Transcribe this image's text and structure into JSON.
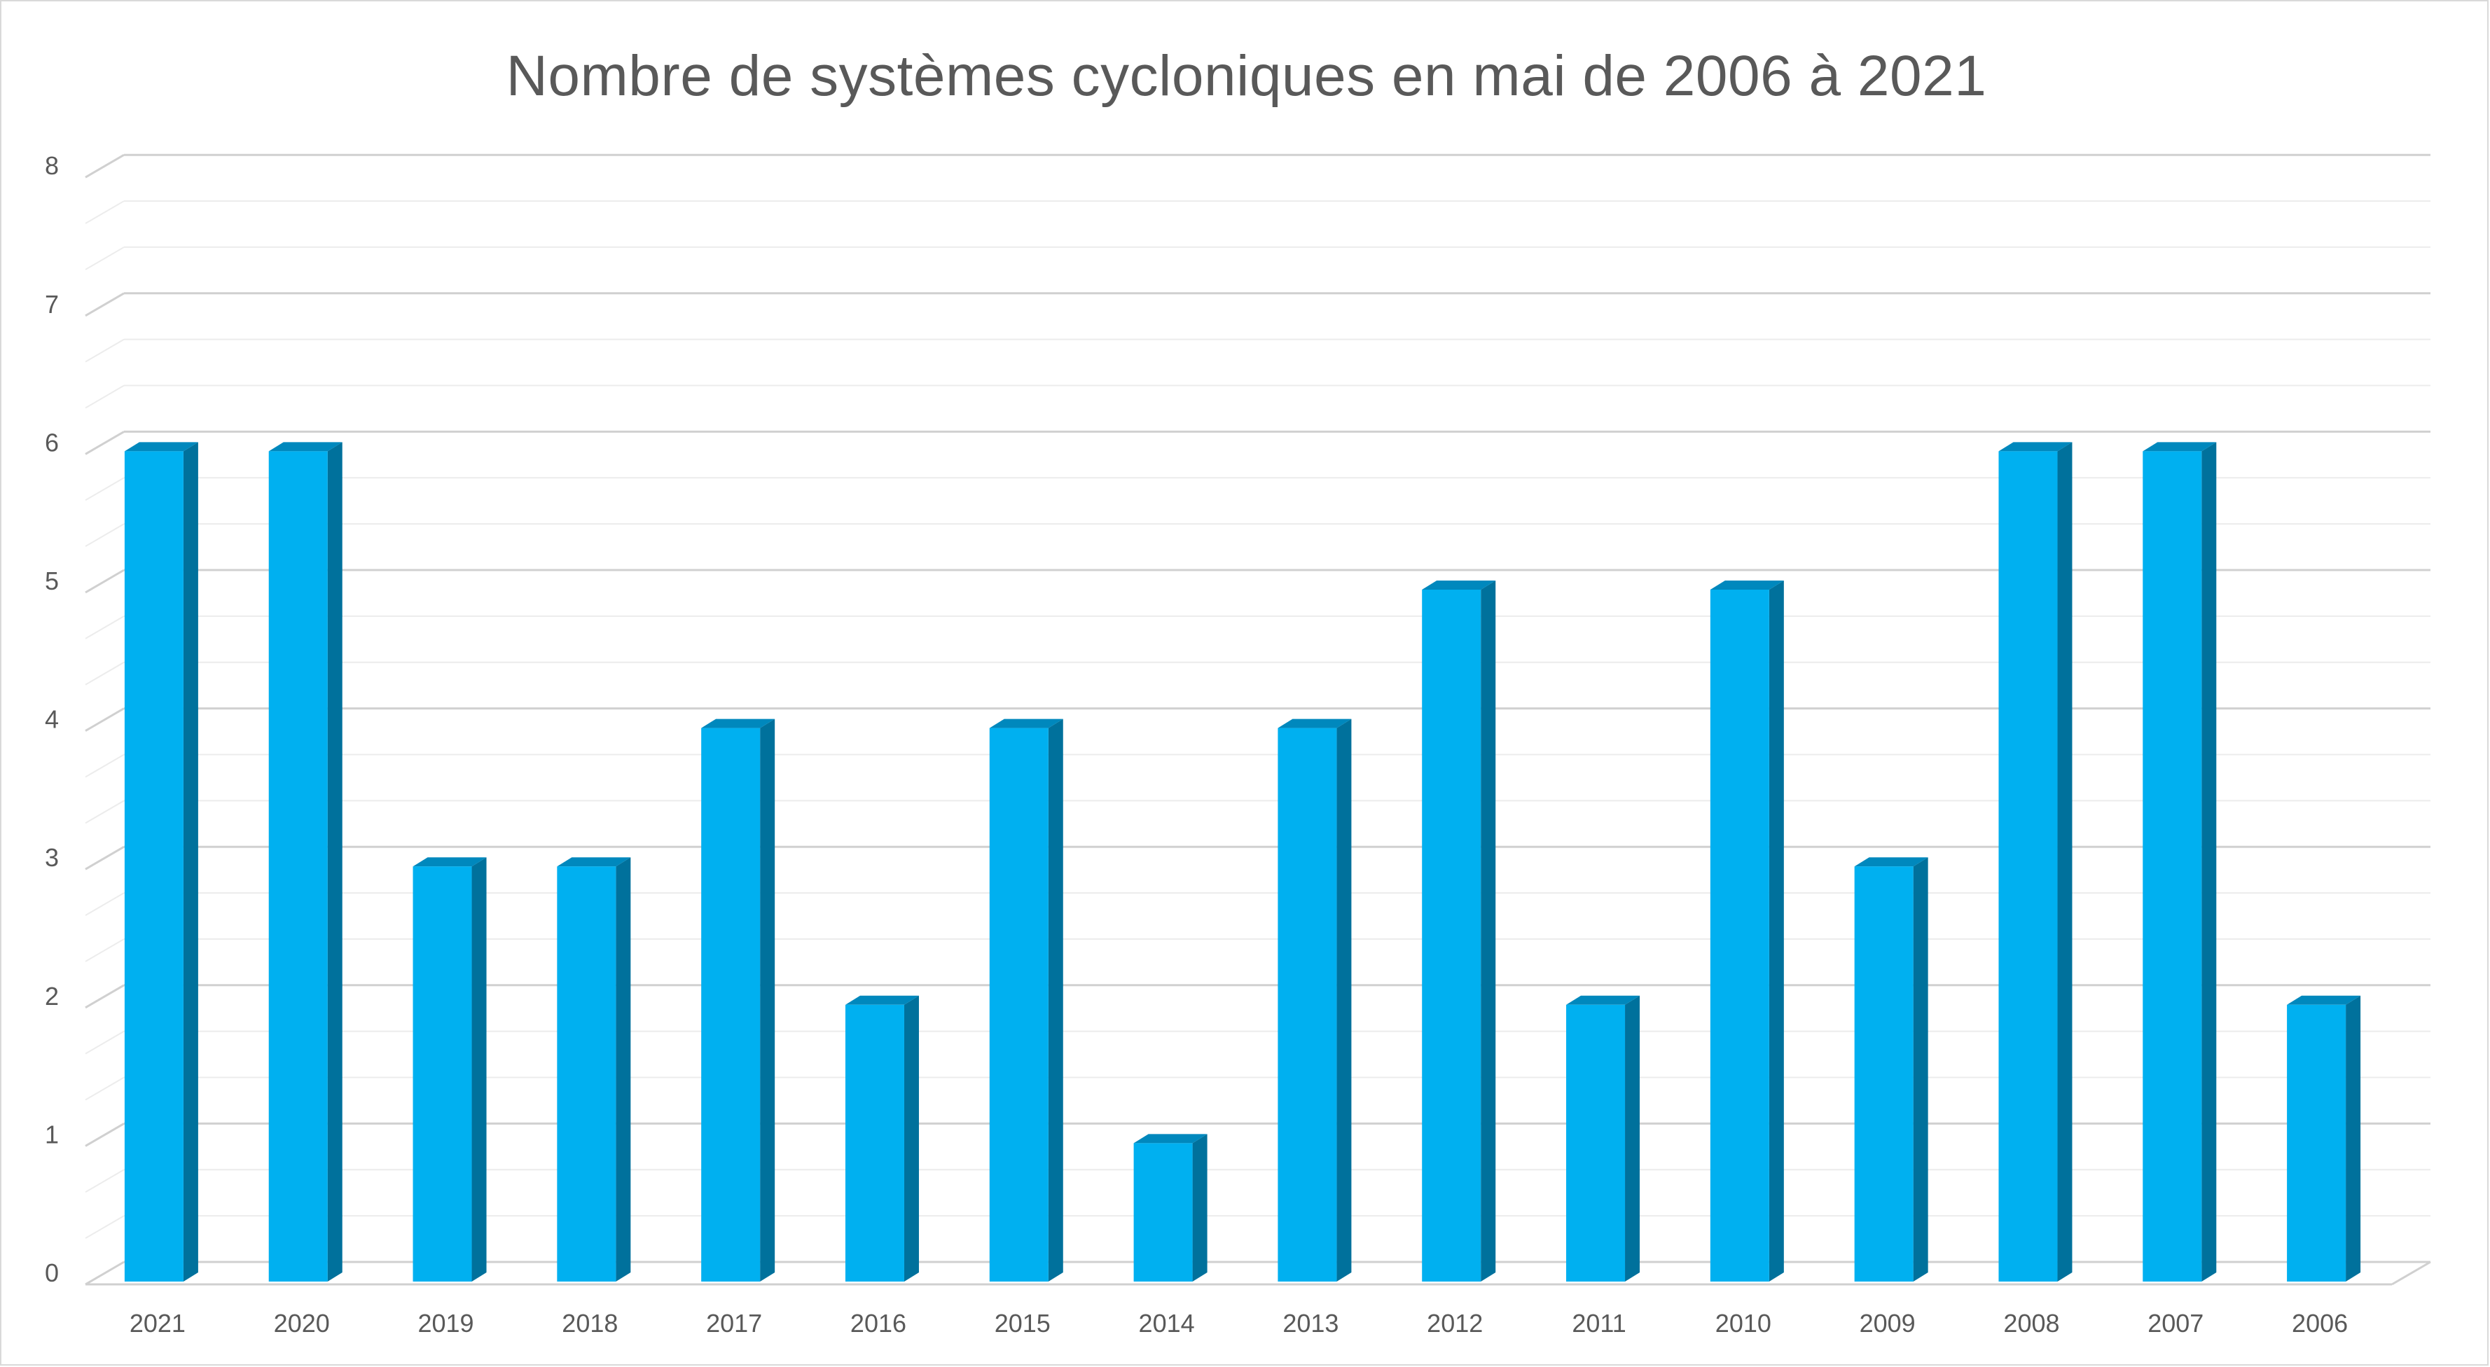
{
  "chart_data": {
    "type": "bar",
    "style": "3d-column",
    "title": "Nombre de systèmes cycloniques en mai de 2006 à 2021",
    "xlabel": "",
    "ylabel": "",
    "categories": [
      "2021",
      "2020",
      "2019",
      "2018",
      "2017",
      "2016",
      "2015",
      "2014",
      "2013",
      "2012",
      "2011",
      "2010",
      "2009",
      "2008",
      "2007",
      "2006"
    ],
    "values": [
      6,
      6,
      3,
      3,
      4,
      2,
      4,
      1,
      4,
      5,
      2,
      5,
      3,
      6,
      6,
      2
    ],
    "ylim": [
      0,
      8
    ],
    "yticks": [
      "0",
      "1",
      "2",
      "3",
      "4",
      "5",
      "6",
      "7",
      "8"
    ],
    "grid": true,
    "legend": "none",
    "colors": {
      "bar_front": "#00b0f0",
      "bar_side": "#00719c",
      "bar_top": "#0088bd",
      "major_grid": "#d0d0d0",
      "minor_grid": "#ececec",
      "text": "#595959"
    }
  }
}
